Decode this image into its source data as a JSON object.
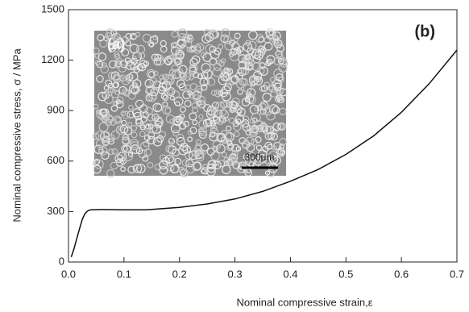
{
  "chart_data": {
    "type": "line",
    "xlabel": "Nominal compressive strain,ε",
    "ylabel": "Nominal compressive stress, σ / MPa",
    "panel_label": "(b)",
    "inset_label": "(a)",
    "scale_bar_label": "300μm",
    "x": [
      0.005,
      0.01,
      0.015,
      0.02,
      0.025,
      0.03,
      0.035,
      0.04,
      0.06,
      0.1,
      0.14,
      0.2,
      0.25,
      0.3,
      0.35,
      0.4,
      0.45,
      0.5,
      0.55,
      0.6,
      0.65,
      0.7
    ],
    "values": [
      30,
      80,
      140,
      200,
      255,
      290,
      305,
      310,
      312,
      310,
      310,
      325,
      345,
      375,
      420,
      480,
      550,
      640,
      750,
      890,
      1060,
      1260
    ],
    "color": "#111111",
    "xlim": [
      0,
      0.7
    ],
    "xticks": [
      {
        "value": 0,
        "label": "0.0"
      },
      0.1,
      0.2,
      0.3,
      0.4,
      0.5,
      0.6,
      0.7
    ],
    "ylim": [
      0,
      1500
    ],
    "yticks": [
      0,
      300,
      600,
      900,
      1200,
      1500
    ]
  }
}
